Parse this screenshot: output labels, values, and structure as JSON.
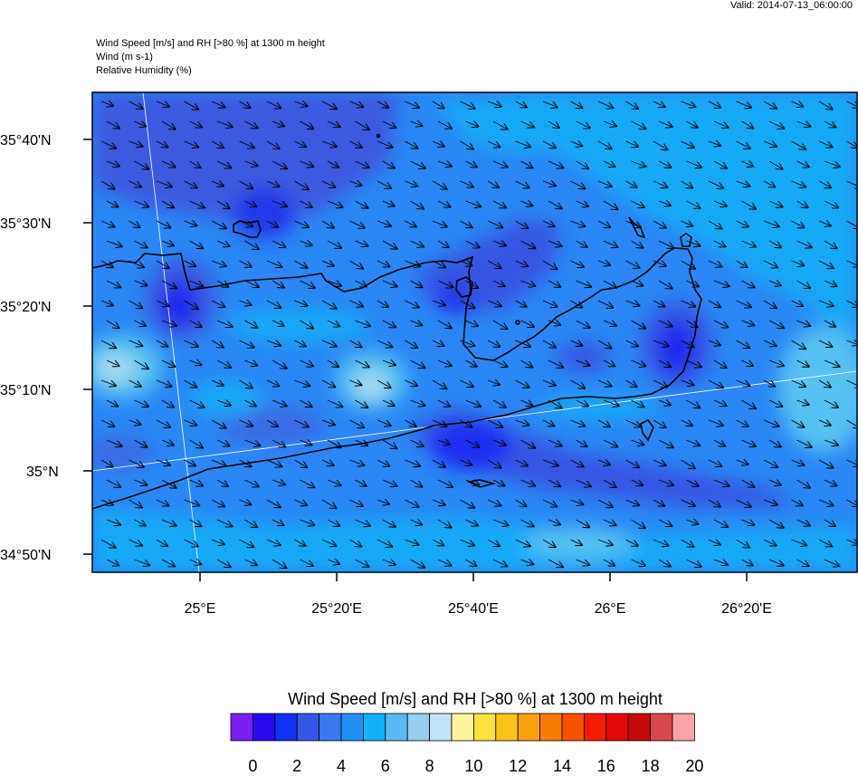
{
  "header": {
    "valid": "Valid: 2014-07-13_06:00:00",
    "line1": "Wind Speed [m/s] and RH [>80 %] at 1300 m height",
    "line2": "Wind   (m s-1)",
    "line3": "Relative Humidity   (%)"
  },
  "map": {
    "lat_labels": [
      "35°40'N",
      "35°30'N",
      "35°20'N",
      "35°10'N",
      "35°N",
      "34°50'N"
    ],
    "lon_labels": [
      "25°E",
      "25°20'E",
      "25°40'E",
      "26°E",
      "26°20'E"
    ],
    "wind_direction": "toward south-east",
    "region": "Crete",
    "colors": {
      "background": "#2a87f5",
      "low_wind": "#2f4fe0",
      "very_low_wind": "#1a2ef0",
      "medium_wind": "#13b0f5",
      "high_wind": "#96d3f2",
      "coast": "#000000",
      "arrows": "#000000"
    }
  },
  "colorbar": {
    "title": "Wind Speed [m/s] and RH [>80 %] at 1300 m height",
    "ticks": [
      "0",
      "2",
      "4",
      "6",
      "8",
      "10",
      "12",
      "14",
      "16",
      "18",
      "20"
    ],
    "colors": [
      "#7a1ef0",
      "#2a0af2",
      "#1232f2",
      "#3556e4",
      "#3a78ee",
      "#2090f5",
      "#12b0f7",
      "#5ab8f2",
      "#96cff0",
      "#c2e3f5",
      "#fff49a",
      "#fde143",
      "#fbc21a",
      "#f9a30a",
      "#f97c05",
      "#f65200",
      "#f21d00",
      "#e40808",
      "#c60a0a",
      "#d9484a",
      "#f5a5a8"
    ]
  }
}
